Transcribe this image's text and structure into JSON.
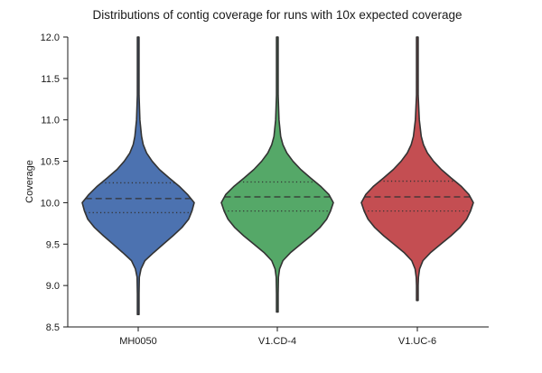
{
  "chart_data": {
    "type": "violin",
    "title": "Distributions of contig coverage for runs with 10x expected coverage",
    "xlabel": "",
    "ylabel": "Coverage",
    "ylim": [
      8.5,
      12.0
    ],
    "yticks": [
      "8.5",
      "9.0",
      "9.5",
      "10.0",
      "10.5",
      "11.0",
      "11.5",
      "12.0"
    ],
    "grid": false,
    "categories": [
      "MH0050",
      "V1.CD-4",
      "V1.UC-6"
    ],
    "series": [
      {
        "category": "MH0050",
        "color": "#4c72b0",
        "min": 8.65,
        "max": 12.0,
        "quartile_low": 9.88,
        "median": 10.05,
        "quartile_high": 10.24,
        "density_profile": [
          [
            8.65,
            0.0
          ],
          [
            8.9,
            0.01
          ],
          [
            9.1,
            0.02
          ],
          [
            9.2,
            0.05
          ],
          [
            9.3,
            0.12
          ],
          [
            9.4,
            0.28
          ],
          [
            9.5,
            0.45
          ],
          [
            9.6,
            0.62
          ],
          [
            9.7,
            0.78
          ],
          [
            9.8,
            0.9
          ],
          [
            9.9,
            0.96
          ],
          [
            10.0,
            1.0
          ],
          [
            10.1,
            0.88
          ],
          [
            10.2,
            0.73
          ],
          [
            10.3,
            0.55
          ],
          [
            10.4,
            0.38
          ],
          [
            10.5,
            0.25
          ],
          [
            10.6,
            0.15
          ],
          [
            10.7,
            0.09
          ],
          [
            10.8,
            0.06
          ],
          [
            11.0,
            0.03
          ],
          [
            11.3,
            0.015
          ],
          [
            11.6,
            0.01
          ],
          [
            12.0,
            0.0
          ]
        ]
      },
      {
        "category": "V1.CD-4",
        "color": "#55a868",
        "min": 8.68,
        "max": 12.0,
        "quartile_low": 9.9,
        "median": 10.07,
        "quartile_high": 10.25,
        "density_profile": [
          [
            8.68,
            0.0
          ],
          [
            8.9,
            0.01
          ],
          [
            9.1,
            0.02
          ],
          [
            9.2,
            0.04
          ],
          [
            9.3,
            0.1
          ],
          [
            9.4,
            0.24
          ],
          [
            9.5,
            0.42
          ],
          [
            9.6,
            0.6
          ],
          [
            9.7,
            0.76
          ],
          [
            9.8,
            0.88
          ],
          [
            9.9,
            0.95
          ],
          [
            10.0,
            1.0
          ],
          [
            10.1,
            0.92
          ],
          [
            10.2,
            0.77
          ],
          [
            10.3,
            0.59
          ],
          [
            10.4,
            0.42
          ],
          [
            10.5,
            0.28
          ],
          [
            10.6,
            0.17
          ],
          [
            10.7,
            0.1
          ],
          [
            10.8,
            0.06
          ],
          [
            11.0,
            0.03
          ],
          [
            11.3,
            0.015
          ],
          [
            11.6,
            0.01
          ],
          [
            12.0,
            0.0
          ]
        ]
      },
      {
        "category": "V1.UC-6",
        "color": "#c44e52",
        "min": 8.82,
        "max": 12.0,
        "quartile_low": 9.9,
        "median": 10.07,
        "quartile_high": 10.26,
        "density_profile": [
          [
            8.82,
            0.0
          ],
          [
            9.0,
            0.01
          ],
          [
            9.1,
            0.02
          ],
          [
            9.2,
            0.04
          ],
          [
            9.3,
            0.1
          ],
          [
            9.4,
            0.24
          ],
          [
            9.5,
            0.42
          ],
          [
            9.6,
            0.6
          ],
          [
            9.7,
            0.76
          ],
          [
            9.8,
            0.88
          ],
          [
            9.9,
            0.95
          ],
          [
            10.0,
            1.0
          ],
          [
            10.1,
            0.92
          ],
          [
            10.2,
            0.78
          ],
          [
            10.3,
            0.6
          ],
          [
            10.4,
            0.43
          ],
          [
            10.5,
            0.29
          ],
          [
            10.6,
            0.18
          ],
          [
            10.7,
            0.11
          ],
          [
            10.8,
            0.07
          ],
          [
            11.0,
            0.035
          ],
          [
            11.3,
            0.015
          ],
          [
            11.6,
            0.01
          ],
          [
            12.0,
            0.0
          ]
        ]
      }
    ]
  }
}
